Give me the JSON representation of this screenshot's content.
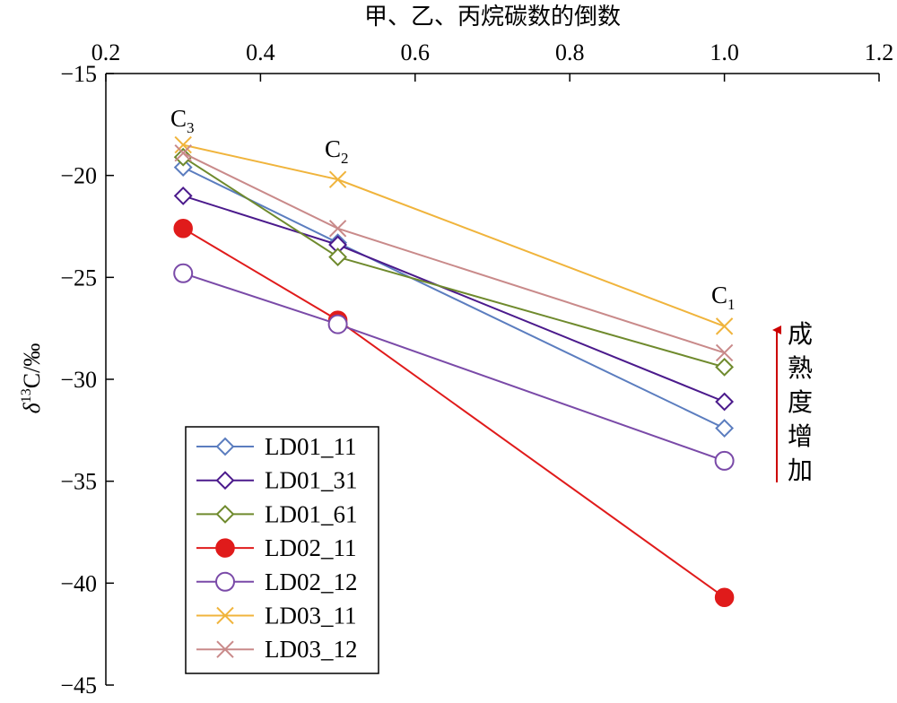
{
  "chart_data": {
    "type": "line",
    "xlabel": "甲、乙、丙烷碳数的倒数",
    "ylabel": {
      "greek": "δ",
      "sup": "13",
      "rest": "C/‰"
    },
    "xlim": [
      0.2,
      1.2
    ],
    "ylim": [
      -45,
      -15
    ],
    "x_axis_position": "top",
    "xticks": [
      "0.2",
      "0.4",
      "0.6",
      "0.8",
      "1.0",
      "1.2"
    ],
    "yticks": [
      "−15",
      "−20",
      "−25",
      "−30",
      "−35",
      "−40",
      "−45"
    ],
    "x": [
      0.3,
      0.5,
      1.0
    ],
    "series": [
      {
        "name": "LD01_11",
        "color": "#5b7dbf",
        "marker": "diamond-open",
        "values": [
          -19.6,
          -23.3,
          -32.4
        ]
      },
      {
        "name": "LD01_31",
        "color": "#4b1a8c",
        "marker": "diamond-open",
        "values": [
          -21.0,
          -23.4,
          -31.1
        ]
      },
      {
        "name": "LD01_61",
        "color": "#6f8a2d",
        "marker": "diamond-open",
        "values": [
          -19.1,
          -24.0,
          -29.4
        ]
      },
      {
        "name": "LD02_11",
        "color": "#e01b1b",
        "marker": "circle-filled",
        "values": [
          -22.6,
          -27.1,
          -40.7
        ]
      },
      {
        "name": "LD02_12",
        "color": "#7a4aa8",
        "marker": "circle-open",
        "values": [
          -24.8,
          -27.3,
          -34.0
        ]
      },
      {
        "name": "LD03_11",
        "color": "#f0b43c",
        "marker": "x",
        "values": [
          -18.5,
          -20.2,
          -27.4
        ]
      },
      {
        "name": "LD03_12",
        "color": "#c98a8a",
        "marker": "x",
        "values": [
          -18.9,
          -22.6,
          -28.7
        ]
      }
    ],
    "point_labels": [
      {
        "main": "C",
        "sub": "3"
      },
      {
        "main": "C",
        "sub": "2"
      },
      {
        "main": "C",
        "sub": "1"
      }
    ],
    "annotation": {
      "text": [
        "成",
        "熟",
        "度",
        "增",
        "加"
      ],
      "arrow_color": "#cc0000"
    },
    "legend_position": "bottom-left",
    "grid": false
  }
}
